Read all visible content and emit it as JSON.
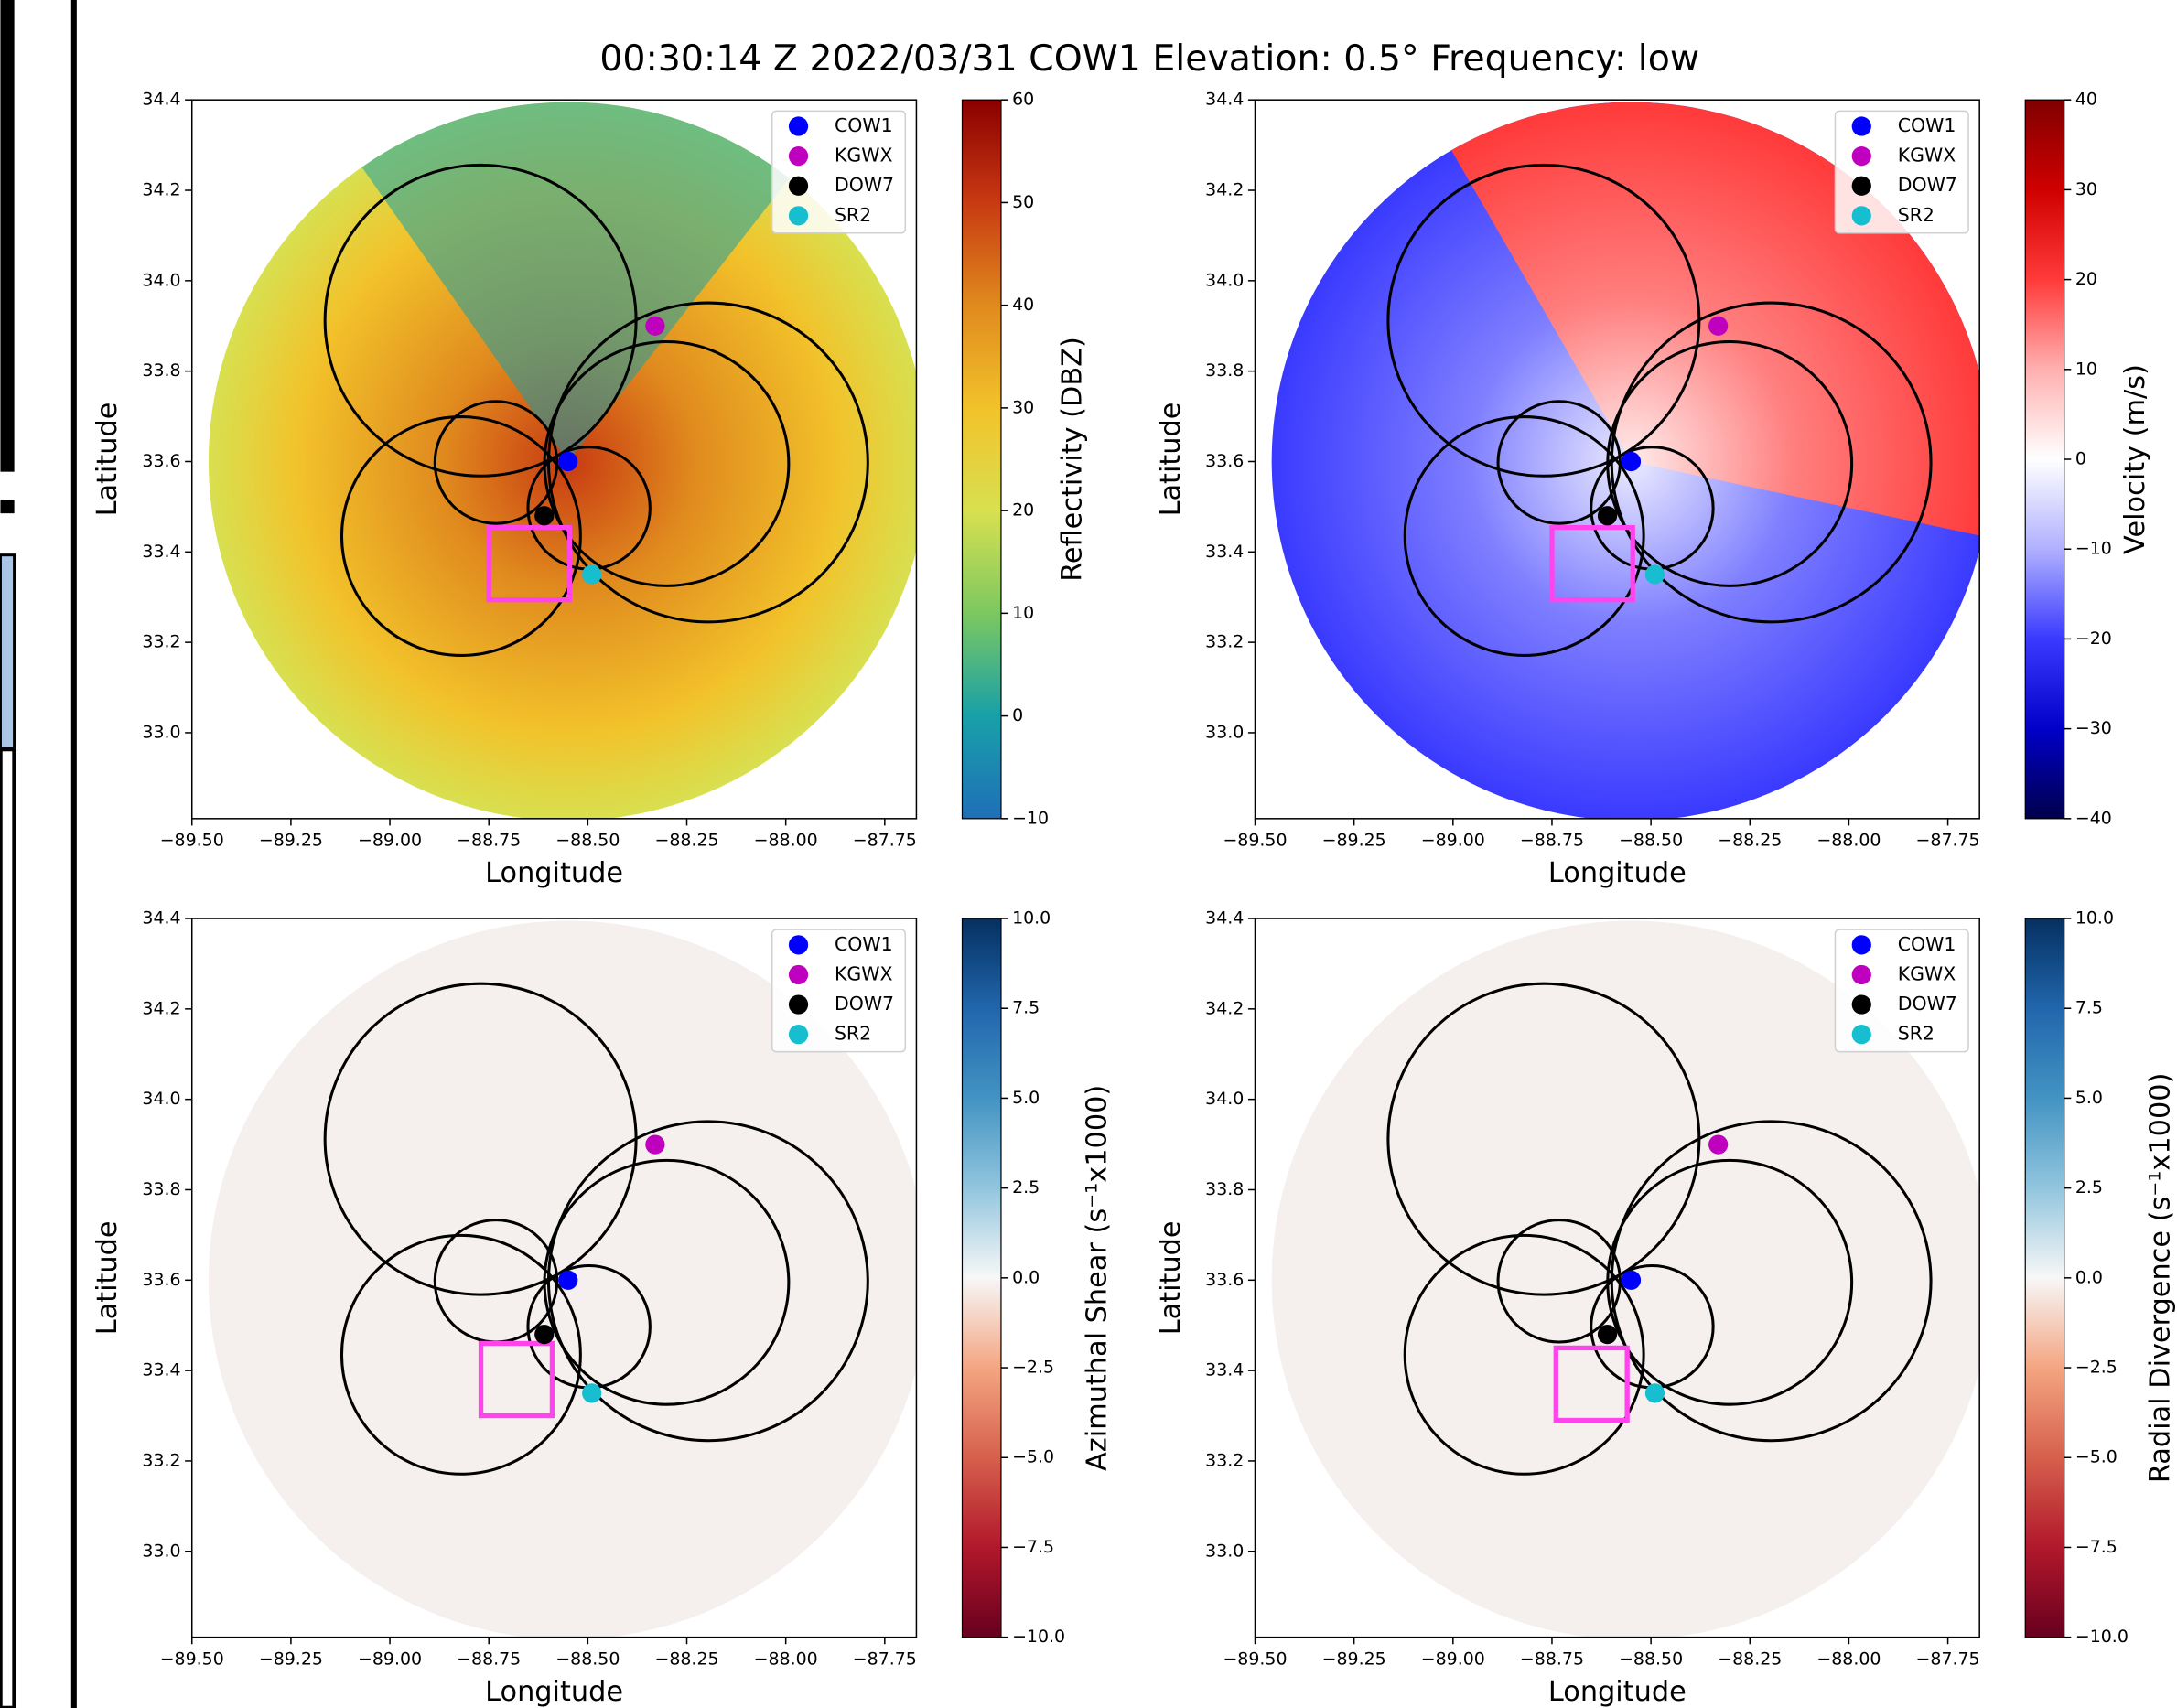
{
  "title": "00:30:14 Z  2022/03/31  COW1  Elevation: 0.5°  Frequency: low",
  "chart_data": [
    {
      "type": "scatter",
      "xlabel": "Longitude",
      "ylabel": "Latitude",
      "xlim": [
        -89.5,
        -87.67
      ],
      "ylim": [
        32.81,
        34.4
      ],
      "xticks": [
        {
          "value": -89.5,
          "label": "−89.50"
        },
        {
          "value": -89.25,
          "label": "−89.25"
        },
        {
          "value": -89,
          "label": "−89.00"
        },
        {
          "value": -88.75,
          "label": "−88.75"
        },
        {
          "value": -88.5,
          "label": "−88.50"
        },
        {
          "value": -88.25,
          "label": "−88.25"
        },
        {
          "value": -88,
          "label": "−88.00"
        },
        {
          "value": -87.75,
          "label": "−87.75"
        }
      ],
      "yticks": [
        {
          "value": 33,
          "label": "33.0"
        },
        {
          "value": 33.2,
          "label": "33.2"
        },
        {
          "value": 33.4,
          "label": "33.4"
        },
        {
          "value": 33.6,
          "label": "33.6"
        },
        {
          "value": 33.8,
          "label": "33.8"
        },
        {
          "value": 34,
          "label": "34.0"
        },
        {
          "value": 34.2,
          "label": "34.2"
        },
        34.4
      ],
      "legend": "upper right",
      "series": [
        {
          "name": "COW1",
          "color": "#0000ff",
          "x": [
            -88.55
          ],
          "values": [
            33.6
          ]
        },
        {
          "name": "KGWX",
          "color": "#bf00bf",
          "x": [
            -88.33
          ],
          "values": [
            33.9
          ]
        },
        {
          "name": "DOW7",
          "color": "#000000",
          "x": [
            -88.61
          ],
          "values": [
            33.48
          ]
        },
        {
          "name": "SR2",
          "color": "#17becf",
          "x": [
            -88.49
          ],
          "values": [
            33.35
          ]
        }
      ],
      "circles": [
        {
          "x": -88.771,
          "y": 33.912,
          "r": 0.344
        },
        {
          "x": -88.196,
          "y": 33.598,
          "r": 0.353
        },
        {
          "x": -88.301,
          "y": 33.595,
          "r": 0.27
        },
        {
          "x": -88.82,
          "y": 33.435,
          "r": 0.264
        },
        {
          "x": -88.732,
          "y": 33.598,
          "r": 0.135
        },
        {
          "x": -88.497,
          "y": 33.497,
          "r": 0.135
        }
      ],
      "box": {
        "x": [
          -88.75,
          -88.546
        ],
        "y": [
          33.294,
          33.454
        ],
        "color": "#ff44ee"
      },
      "colorbar": {
        "label": "Reflectivity (DBZ)",
        "lim": [
          -10,
          60
        ],
        "ticks": [
          {
            "value": -10,
            "label": "−10"
          },
          0,
          10,
          20,
          30,
          40,
          50,
          60
        ],
        "colormap": [
          "#1f6fb8",
          "#18a0a8",
          "#7cc860",
          "#d8e050",
          "#f2c22a",
          "#e08a1e",
          "#c83a12",
          "#8b0000"
        ]
      }
    },
    {
      "type": "scatter",
      "xlabel": "Longitude",
      "ylabel": "Latitude",
      "xlim": [
        -89.5,
        -87.67
      ],
      "ylim": [
        32.81,
        34.4
      ],
      "xticks": [
        {
          "value": -89.5,
          "label": "−89.50"
        },
        {
          "value": -89.25,
          "label": "−89.25"
        },
        {
          "value": -89,
          "label": "−89.00"
        },
        {
          "value": -88.75,
          "label": "−88.75"
        },
        {
          "value": -88.5,
          "label": "−88.50"
        },
        {
          "value": -88.25,
          "label": "−88.25"
        },
        {
          "value": -88,
          "label": "−88.00"
        },
        {
          "value": -87.75,
          "label": "−87.75"
        }
      ],
      "yticks": [
        {
          "value": 33,
          "label": "33.0"
        },
        {
          "value": 33.2,
          "label": "33.2"
        },
        {
          "value": 33.4,
          "label": "33.4"
        },
        {
          "value": 33.6,
          "label": "33.6"
        },
        {
          "value": 33.8,
          "label": "33.8"
        },
        {
          "value": 34,
          "label": "34.0"
        },
        {
          "value": 34.2,
          "label": "34.2"
        },
        34.4
      ],
      "legend": "upper right",
      "series": [
        {
          "name": "COW1",
          "color": "#0000ff",
          "x": [
            -88.55
          ],
          "values": [
            33.6
          ]
        },
        {
          "name": "KGWX",
          "color": "#bf00bf",
          "x": [
            -88.33
          ],
          "values": [
            33.9
          ]
        },
        {
          "name": "DOW7",
          "color": "#000000",
          "x": [
            -88.61
          ],
          "values": [
            33.48
          ]
        },
        {
          "name": "SR2",
          "color": "#17becf",
          "x": [
            -88.49
          ],
          "values": [
            33.35
          ]
        }
      ],
      "circles": [
        {
          "x": -88.771,
          "y": 33.912,
          "r": 0.344
        },
        {
          "x": -88.196,
          "y": 33.598,
          "r": 0.353
        },
        {
          "x": -88.301,
          "y": 33.595,
          "r": 0.27
        },
        {
          "x": -88.82,
          "y": 33.435,
          "r": 0.264
        },
        {
          "x": -88.732,
          "y": 33.598,
          "r": 0.135
        },
        {
          "x": -88.497,
          "y": 33.497,
          "r": 0.135
        }
      ],
      "box": {
        "x": [
          -88.75,
          -88.546
        ],
        "y": [
          33.294,
          33.454
        ],
        "color": "#ff44ee"
      },
      "colorbar": {
        "label": "Velocity (m/s)",
        "lim": [
          -40,
          40
        ],
        "ticks": [
          {
            "value": -40,
            "label": "−40"
          },
          {
            "value": -30,
            "label": "−30"
          },
          {
            "value": -20,
            "label": "−20"
          },
          {
            "value": -10,
            "label": "−10"
          },
          0,
          10,
          20,
          30,
          40
        ],
        "colormap": [
          "#00004c",
          "#0000c8",
          "#3a3aff",
          "#b0b0ff",
          "#ffffff",
          "#ffb0b0",
          "#ff3a3a",
          "#d00000",
          "#800000"
        ]
      }
    },
    {
      "type": "scatter",
      "xlabel": "Longitude",
      "ylabel": "Latitude",
      "xlim": [
        -89.5,
        -87.67
      ],
      "ylim": [
        32.81,
        34.4
      ],
      "xticks": [
        {
          "value": -89.5,
          "label": "−89.50"
        },
        {
          "value": -89.25,
          "label": "−89.25"
        },
        {
          "value": -89,
          "label": "−89.00"
        },
        {
          "value": -88.75,
          "label": "−88.75"
        },
        {
          "value": -88.5,
          "label": "−88.50"
        },
        {
          "value": -88.25,
          "label": "−88.25"
        },
        {
          "value": -88,
          "label": "−88.00"
        },
        {
          "value": -87.75,
          "label": "−87.75"
        }
      ],
      "yticks": [
        {
          "value": 33,
          "label": "33.0"
        },
        {
          "value": 33.2,
          "label": "33.2"
        },
        {
          "value": 33.4,
          "label": "33.4"
        },
        {
          "value": 33.6,
          "label": "33.6"
        },
        {
          "value": 33.8,
          "label": "33.8"
        },
        {
          "value": 34,
          "label": "34.0"
        },
        {
          "value": 34.2,
          "label": "34.2"
        },
        34.4
      ],
      "legend": "upper right",
      "series": [
        {
          "name": "COW1",
          "color": "#0000ff",
          "x": [
            -88.55
          ],
          "values": [
            33.6
          ]
        },
        {
          "name": "KGWX",
          "color": "#bf00bf",
          "x": [
            -88.33
          ],
          "values": [
            33.9
          ]
        },
        {
          "name": "DOW7",
          "color": "#000000",
          "x": [
            -88.61
          ],
          "values": [
            33.48
          ]
        },
        {
          "name": "SR2",
          "color": "#17becf",
          "x": [
            -88.49
          ],
          "values": [
            33.35
          ]
        }
      ],
      "circles": [
        {
          "x": -88.771,
          "y": 33.912,
          "r": 0.344
        },
        {
          "x": -88.196,
          "y": 33.598,
          "r": 0.353
        },
        {
          "x": -88.301,
          "y": 33.595,
          "r": 0.27
        },
        {
          "x": -88.82,
          "y": 33.435,
          "r": 0.264
        },
        {
          "x": -88.732,
          "y": 33.598,
          "r": 0.135
        },
        {
          "x": -88.497,
          "y": 33.497,
          "r": 0.135
        }
      ],
      "box": {
        "x": [
          -88.77,
          -88.59
        ],
        "y": [
          33.3,
          33.46
        ],
        "color": "#ff44ee"
      },
      "colorbar": {
        "label": "Azimuthal Shear (s⁻¹x1000)",
        "lim": [
          -10,
          10
        ],
        "ticks": [
          {
            "value": -10,
            "label": "−10.0"
          },
          {
            "value": -7.5,
            "label": "−7.5"
          },
          {
            "value": -5,
            "label": "−5.0"
          },
          {
            "value": -2.5,
            "label": "−2.5"
          },
          {
            "value": 0,
            "label": "0.0"
          },
          2.5,
          {
            "value": 5,
            "label": "5.0"
          },
          7.5,
          {
            "value": 10,
            "label": "10.0"
          }
        ],
        "colormap": [
          "#67001f",
          "#b2182b",
          "#d6604d",
          "#f4a582",
          "#f7f7f7",
          "#92c5de",
          "#4393c3",
          "#2166ac",
          "#053061"
        ]
      }
    },
    {
      "type": "scatter",
      "xlabel": "Longitude",
      "ylabel": "Latitude",
      "xlim": [
        -89.5,
        -87.67
      ],
      "ylim": [
        32.81,
        34.4
      ],
      "xticks": [
        {
          "value": -89.5,
          "label": "−89.50"
        },
        {
          "value": -89.25,
          "label": "−89.25"
        },
        {
          "value": -89,
          "label": "−89.00"
        },
        {
          "value": -88.75,
          "label": "−88.75"
        },
        {
          "value": -88.5,
          "label": "−88.50"
        },
        {
          "value": -88.25,
          "label": "−88.25"
        },
        {
          "value": -88,
          "label": "−88.00"
        },
        {
          "value": -87.75,
          "label": "−87.75"
        }
      ],
      "yticks": [
        {
          "value": 33,
          "label": "33.0"
        },
        {
          "value": 33.2,
          "label": "33.2"
        },
        {
          "value": 33.4,
          "label": "33.4"
        },
        {
          "value": 33.6,
          "label": "33.6"
        },
        {
          "value": 33.8,
          "label": "33.8"
        },
        {
          "value": 34,
          "label": "34.0"
        },
        {
          "value": 34.2,
          "label": "34.2"
        },
        34.4
      ],
      "legend": "upper right",
      "series": [
        {
          "name": "COW1",
          "color": "#0000ff",
          "x": [
            -88.55
          ],
          "values": [
            33.6
          ]
        },
        {
          "name": "KGWX",
          "color": "#bf00bf",
          "x": [
            -88.33
          ],
          "values": [
            33.9
          ]
        },
        {
          "name": "DOW7",
          "color": "#000000",
          "x": [
            -88.61
          ],
          "values": [
            33.48
          ]
        },
        {
          "name": "SR2",
          "color": "#17becf",
          "x": [
            -88.49
          ],
          "values": [
            33.35
          ]
        }
      ],
      "circles": [
        {
          "x": -88.771,
          "y": 33.912,
          "r": 0.344
        },
        {
          "x": -88.196,
          "y": 33.598,
          "r": 0.353
        },
        {
          "x": -88.301,
          "y": 33.595,
          "r": 0.27
        },
        {
          "x": -88.82,
          "y": 33.435,
          "r": 0.264
        },
        {
          "x": -88.732,
          "y": 33.598,
          "r": 0.135
        },
        {
          "x": -88.497,
          "y": 33.497,
          "r": 0.135
        }
      ],
      "box": {
        "x": [
          -88.74,
          -88.56
        ],
        "y": [
          33.29,
          33.45
        ],
        "color": "#ff44ee"
      },
      "colorbar": {
        "label": "Radial Divergence (s⁻¹x1000)",
        "lim": [
          -10,
          10
        ],
        "ticks": [
          {
            "value": -10,
            "label": "−10.0"
          },
          {
            "value": -7.5,
            "label": "−7.5"
          },
          {
            "value": -5,
            "label": "−5.0"
          },
          {
            "value": -2.5,
            "label": "−2.5"
          },
          {
            "value": 0,
            "label": "0.0"
          },
          2.5,
          {
            "value": 5,
            "label": "5.0"
          },
          7.5,
          {
            "value": 10,
            "label": "10.0"
          }
        ],
        "colormap": [
          "#67001f",
          "#b2182b",
          "#d6604d",
          "#f4a582",
          "#f7f7f7",
          "#92c5de",
          "#4393c3",
          "#2166ac",
          "#053061"
        ]
      }
    }
  ]
}
